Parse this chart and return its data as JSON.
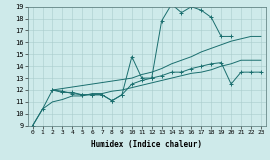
{
  "xlabel": "Humidex (Indice chaleur)",
  "xlim": [
    -0.5,
    23.5
  ],
  "ylim": [
    9,
    19
  ],
  "xticks": [
    0,
    1,
    2,
    3,
    4,
    5,
    6,
    7,
    8,
    9,
    10,
    11,
    12,
    13,
    14,
    15,
    16,
    17,
    18,
    19,
    20,
    21,
    22,
    23
  ],
  "yticks": [
    9,
    10,
    11,
    12,
    13,
    14,
    15,
    16,
    17,
    18,
    19
  ],
  "bg_color": "#ceeaea",
  "line_color": "#1a6e6e",
  "grid_color": "#aacccc",
  "series": [
    {
      "x": [
        0,
        1,
        2,
        3,
        4,
        5,
        6,
        7,
        8,
        9,
        10,
        11,
        12,
        13,
        14,
        15,
        16,
        17,
        18,
        19,
        20
      ],
      "y": [
        9.0,
        10.4,
        12.0,
        11.8,
        11.8,
        11.6,
        11.6,
        11.6,
        11.1,
        11.6,
        14.8,
        13.0,
        13.0,
        17.8,
        19.2,
        18.5,
        19.0,
        18.7,
        18.1,
        16.5,
        16.5
      ],
      "marker": true
    },
    {
      "x": [
        2,
        10,
        11,
        12,
        13,
        14,
        15,
        16,
        17,
        18,
        19,
        20,
        21,
        22,
        23
      ],
      "y": [
        12.0,
        13.0,
        13.3,
        13.5,
        13.8,
        14.2,
        14.5,
        14.8,
        15.2,
        15.5,
        15.8,
        16.1,
        16.3,
        16.5,
        16.5
      ],
      "marker": false
    },
    {
      "x": [
        2,
        3,
        4,
        5,
        6,
        7,
        8,
        9,
        10,
        11,
        12,
        13,
        14,
        15,
        16,
        17,
        18,
        19,
        20,
        21,
        22,
        23
      ],
      "y": [
        12.0,
        11.9,
        11.7,
        11.6,
        11.6,
        11.6,
        11.1,
        11.6,
        12.5,
        12.8,
        13.0,
        13.2,
        13.5,
        13.5,
        13.8,
        14.0,
        14.2,
        14.3,
        12.5,
        13.5,
        13.5,
        13.5
      ],
      "marker": true
    },
    {
      "x": [
        0,
        1,
        2,
        3,
        4,
        5,
        6,
        7,
        8,
        9,
        10,
        11,
        12,
        13,
        14,
        15,
        16,
        17,
        18,
        19,
        20,
        21,
        22,
        23
      ],
      "y": [
        9.0,
        10.4,
        11.0,
        11.2,
        11.5,
        11.5,
        11.7,
        11.7,
        11.9,
        12.0,
        12.2,
        12.4,
        12.6,
        12.8,
        13.0,
        13.2,
        13.4,
        13.5,
        13.7,
        14.0,
        14.2,
        14.5,
        14.5,
        14.5
      ],
      "marker": false
    }
  ]
}
